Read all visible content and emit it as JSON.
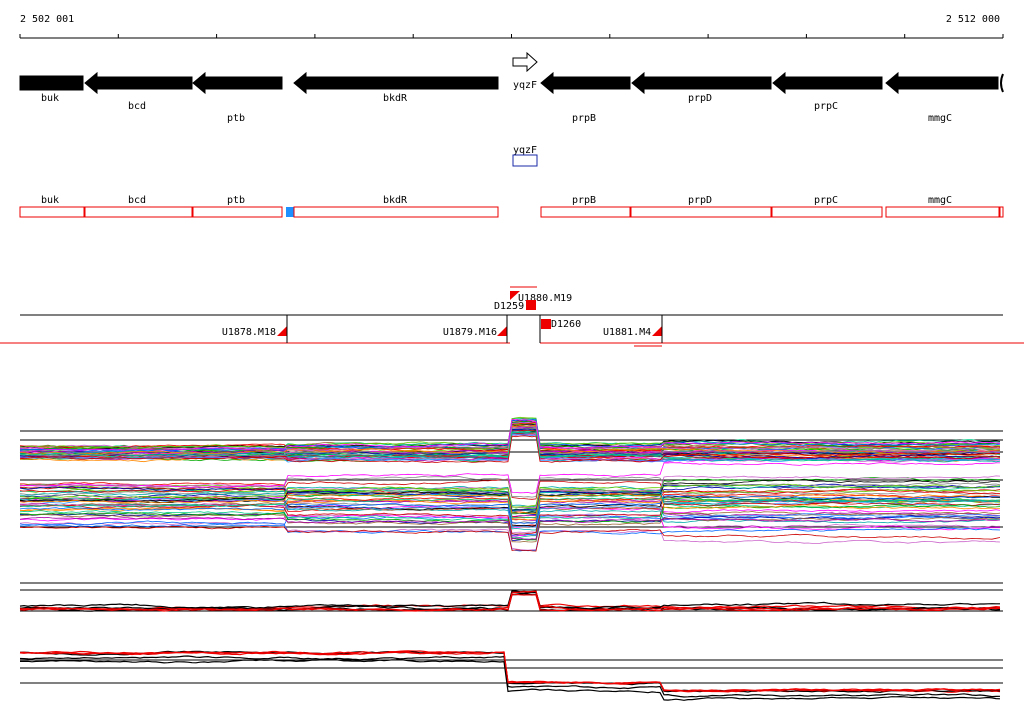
{
  "ruler": {
    "start": "2 502 001",
    "end": "2 512 000"
  },
  "genes": [
    {
      "label": "buk"
    },
    {
      "label": "bcd"
    },
    {
      "label": "ptb"
    },
    {
      "label": "bkdR"
    },
    {
      "label": "yqzF"
    },
    {
      "label": "prpB"
    },
    {
      "label": "prpD"
    },
    {
      "label": "prpC"
    },
    {
      "label": "mmgC"
    }
  ],
  "small_feature": {
    "label": "yqzF"
  },
  "cds": [
    {
      "label": "buk"
    },
    {
      "label": "bcd"
    },
    {
      "label": "ptb"
    },
    {
      "label": "bkdR"
    },
    {
      "label": "prpB"
    },
    {
      "label": "prpD"
    },
    {
      "label": "prpC"
    },
    {
      "label": "mmgC"
    }
  ],
  "features": [
    {
      "label": "U1880.M19"
    },
    {
      "label": "D1259"
    },
    {
      "label": "D1260"
    },
    {
      "label": "U1878.M18"
    },
    {
      "label": "U1879.M16"
    },
    {
      "label": "U1881.M4"
    }
  ]
}
